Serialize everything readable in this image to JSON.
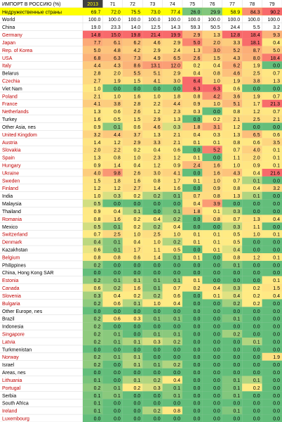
{
  "chart_data": {
    "type": "heatmap",
    "title": "ИМПОРТ В РОССИЮ (%)",
    "columns": [
      "2013",
      "71",
      "72",
      "73",
      "74",
      "75",
      "76",
      "77",
      "78",
      "79"
    ],
    "color_scale": {
      "low": "#63be7b",
      "mid": "#ffeb84",
      "high": "#f8696b"
    },
    "highlight_colors": {
      "header_2013": "#3f3f3f",
      "unfriendly_row": "#ffff00",
      "red_label": "#c00000",
      "black_label": "#000000"
    },
    "rows": [
      {
        "name": "Недружественные страны",
        "style": "unfriendly",
        "plain": true,
        "values": [
          69.7,
          72.0,
          75.5,
          73.0,
          77.4,
          26.0,
          29.9,
          58.9,
          84.3,
          90.2
        ]
      },
      {
        "name": "World",
        "style": "black",
        "plain": true,
        "values": [
          100.0,
          100.0,
          100.0,
          100.0,
          100.0,
          100.0,
          100.0,
          100.0,
          100.0,
          100.0
        ]
      },
      {
        "name": "China",
        "style": "black",
        "plain": true,
        "values": [
          19.0,
          23.3,
          14.0,
          12.5,
          14.3,
          59.3,
          50.5,
          24.4,
          5.5,
          3.2
        ]
      },
      {
        "name": "Germany",
        "style": "red",
        "values": [
          14.8,
          15.0,
          19.8,
          21.4,
          19.9,
          2.9,
          1.3,
          12.8,
          18.4,
          9.3
        ]
      },
      {
        "name": "Japan",
        "style": "red",
        "values": [
          7.7,
          6.1,
          6.2,
          4.6,
          2.9,
          5.0,
          2.0,
          3.3,
          18.1,
          0.4
        ]
      },
      {
        "name": "Rep. of Korea",
        "style": "red",
        "values": [
          5.0,
          4.8,
          4.2,
          2.9,
          2.4,
          1.3,
          3.0,
          5.2,
          8.7,
          5.0
        ]
      },
      {
        "name": "USA",
        "style": "red",
        "values": [
          6.8,
          6.3,
          7.3,
          4.9,
          6.5,
          2.6,
          1.5,
          4.3,
          8.0,
          18.4
        ]
      },
      {
        "name": "Italy",
        "style": "red",
        "values": [
          4.4,
          4.3,
          8.6,
          13.1,
          12.0,
          0.2,
          0.4,
          6.2,
          1.9,
          0.0
        ]
      },
      {
        "name": "Belarus",
        "style": "black",
        "values": [
          2.8,
          2.0,
          5.5,
          5.1,
          2.9,
          0.4,
          0.8,
          4.6,
          2.5,
          0.7
        ]
      },
      {
        "name": "Czechia",
        "style": "red",
        "values": [
          2.7,
          1.9,
          1.5,
          4.1,
          3.0,
          6.4,
          1.0,
          1.9,
          3.8,
          1.3
        ]
      },
      {
        "name": "Viet Nam",
        "style": "black",
        "values": [
          1.0,
          0.0,
          0.0,
          0.0,
          0.0,
          6.3,
          6.3,
          0.6,
          0.0,
          0.0
        ]
      },
      {
        "name": "Poland",
        "style": "red",
        "values": [
          2.1,
          1.0,
          1.6,
          1.0,
          1.8,
          0.8,
          4.2,
          3.6,
          1.9,
          0.7
        ]
      },
      {
        "name": "France",
        "style": "red",
        "values": [
          4.1,
          3.8,
          2.8,
          2.2,
          4.4,
          0.9,
          1.0,
          5.1,
          1.7,
          21.3
        ]
      },
      {
        "name": "Netherlands",
        "style": "red",
        "values": [
          1.3,
          0.6,
          2.6,
          1.2,
          2.3,
          0.3,
          0.0,
          0.8,
          1.2,
          0.7
        ]
      },
      {
        "name": "Turkey",
        "style": "black",
        "values": [
          1.6,
          0.5,
          1.5,
          2.9,
          1.3,
          0.0,
          0.2,
          2.1,
          2.5,
          2.1
        ]
      },
      {
        "name": "Other Asia, nes",
        "style": "black",
        "values": [
          0.9,
          0.1,
          0.6,
          4.6,
          0.3,
          1.8,
          3.1,
          1.2,
          0.0,
          0.0
        ]
      },
      {
        "name": "United Kingdom",
        "style": "red",
        "values": [
          3.2,
          4.4,
          3.7,
          1.3,
          2.1,
          0.4,
          0.3,
          1.3,
          6.5,
          0.6
        ]
      },
      {
        "name": "Austria",
        "style": "red",
        "values": [
          1.4,
          1.2,
          2.9,
          3.3,
          2.1,
          0.1,
          0.1,
          0.8,
          0.6,
          3.5
        ]
      },
      {
        "name": "Slovakia",
        "style": "red",
        "values": [
          2.0,
          2.2,
          0.2,
          0.4,
          0.6,
          0.0,
          5.2,
          0.7,
          4.0,
          0.1
        ]
      },
      {
        "name": "Spain",
        "style": "red",
        "values": [
          1.3,
          0.8,
          1.0,
          2.3,
          1.2,
          0.1,
          0.0,
          1.1,
          2.0,
          0.1
        ]
      },
      {
        "name": "Hungary",
        "style": "red",
        "values": [
          0.9,
          1.4,
          0.4,
          1.2,
          0.9,
          2.4,
          1.6,
          1.0,
          0.9,
          0.1
        ]
      },
      {
        "name": "Ukraine",
        "style": "red",
        "values": [
          4.0,
          9.8,
          2.6,
          3.0,
          4.1,
          0.0,
          1.6,
          4.3,
          0.4,
          21.6
        ]
      },
      {
        "name": "Sweden",
        "style": "red",
        "values": [
          1.5,
          1.8,
          1.6,
          0.8,
          1.7,
          0.1,
          1.0,
          0.7,
          0.1,
          0.0
        ]
      },
      {
        "name": "Finland",
        "style": "red",
        "values": [
          1.2,
          1.2,
          2.7,
          1.4,
          1.6,
          0.0,
          0.9,
          0.8,
          0.4,
          3.2
        ]
      },
      {
        "name": "India",
        "style": "black",
        "values": [
          1.0,
          0.3,
          0.2,
          0.2,
          0.1,
          0.7,
          0.8,
          1.3,
          0.1,
          0.0
        ]
      },
      {
        "name": "Malaysia",
        "style": "black",
        "values": [
          0.5,
          0.0,
          0.0,
          0.0,
          0.0,
          0.4,
          3.9,
          0.0,
          0.0,
          0.0
        ]
      },
      {
        "name": "Thailand",
        "style": "black",
        "values": [
          0.9,
          0.4,
          0.1,
          0.0,
          0.1,
          1.8,
          0.1,
          0.3,
          0.0,
          0.0
        ]
      },
      {
        "name": "Romania",
        "style": "red",
        "values": [
          0.8,
          1.6,
          0.2,
          0.4,
          0.2,
          0.0,
          0.8,
          0.7,
          1.3,
          0.4
        ]
      },
      {
        "name": "Mexico",
        "style": "black",
        "values": [
          0.5,
          0.1,
          0.2,
          0.2,
          0.4,
          0.0,
          0.0,
          0.3,
          1.1,
          0.0
        ]
      },
      {
        "name": "Switzerland",
        "style": "red",
        "values": [
          0.7,
          2.5,
          1.0,
          2.5,
          1.0,
          0.1,
          0.1,
          0.5,
          1.0,
          0.1
        ]
      },
      {
        "name": "Denmark",
        "style": "red",
        "values": [
          0.4,
          0.1,
          0.4,
          1.0,
          0.2,
          0.1,
          0.1,
          0.5,
          0.0,
          0.0
        ]
      },
      {
        "name": "Kazakhstan",
        "style": "black",
        "values": [
          0.6,
          0.1,
          1.7,
          1.1,
          0.5,
          0.0,
          0.1,
          0.4,
          0.0,
          0.0
        ]
      },
      {
        "name": "Belgium",
        "style": "red",
        "values": [
          0.8,
          0.8,
          0.6,
          1.4,
          0.1,
          0.1,
          0.0,
          0.8,
          1.2,
          0.1
        ]
      },
      {
        "name": "Philippines",
        "style": "black",
        "values": [
          0.2,
          0.0,
          0.0,
          0.0,
          0.0,
          0.0,
          0.0,
          0.1,
          0.0,
          0.0
        ]
      },
      {
        "name": "China, Hong Kong SAR",
        "style": "black",
        "values": [
          0.0,
          0.0,
          0.0,
          0.0,
          0.0,
          0.0,
          0.0,
          0.0,
          0.0,
          0.0
        ]
      },
      {
        "name": "Estonia",
        "style": "red",
        "values": [
          0.2,
          0.1,
          0.1,
          0.1,
          0.1,
          0.1,
          0.0,
          0.0,
          0.0,
          0.1
        ]
      },
      {
        "name": "Canada",
        "style": "red",
        "values": [
          0.6,
          0.2,
          1.6,
          0.1,
          0.7,
          0.2,
          0.4,
          0.3,
          0.2,
          1.5
        ]
      },
      {
        "name": "Slovenia",
        "style": "red",
        "values": [
          0.3,
          0.4,
          0.2,
          0.2,
          0.6,
          0.0,
          0.1,
          0.4,
          0.2,
          0.4
        ]
      },
      {
        "name": "Bulgaria",
        "style": "red",
        "values": [
          0.2,
          0.6,
          0.1,
          1.0,
          0.4,
          0.0,
          0.0,
          0.2,
          0.2,
          0.0
        ]
      },
      {
        "name": "Other Europe, nes",
        "style": "black",
        "values": [
          0.0,
          0.0,
          0.0,
          0.0,
          0.0,
          0.0,
          0.0,
          0.0,
          0.0,
          0.0
        ]
      },
      {
        "name": "Brazil",
        "style": "black",
        "values": [
          0.2,
          0.6,
          0.3,
          0.1,
          0.1,
          0.0,
          0.0,
          0.1,
          0.0,
          0.0
        ]
      },
      {
        "name": "Indonesia",
        "style": "black",
        "values": [
          0.2,
          0.0,
          0.0,
          0.0,
          0.0,
          0.0,
          0.0,
          0.0,
          0.0,
          0.0
        ]
      },
      {
        "name": "Singapore",
        "style": "red",
        "values": [
          0.2,
          0.1,
          0.0,
          0.1,
          0.1,
          0.0,
          0.0,
          0.2,
          0.0,
          0.0
        ]
      },
      {
        "name": "Latvia",
        "style": "red",
        "values": [
          0.2,
          0.1,
          0.1,
          0.3,
          0.2,
          0.0,
          0.0,
          0.0,
          0.1,
          0.0
        ]
      },
      {
        "name": "Turkmenistan",
        "style": "black",
        "values": [
          0.0,
          0.0,
          0.0,
          0.0,
          0.0,
          0.0,
          0.0,
          0.0,
          0.0,
          0.0
        ]
      },
      {
        "name": "Norway",
        "style": "red",
        "values": [
          0.2,
          0.1,
          0.1,
          0.0,
          0.0,
          0.0,
          0.0,
          0.0,
          0.0,
          1.9
        ]
      },
      {
        "name": "Israel",
        "style": "black",
        "values": [
          0.2,
          0.0,
          0.1,
          0.1,
          0.2,
          0.0,
          0.0,
          0.0,
          0.0,
          0.0
        ]
      },
      {
        "name": "Areas, nes",
        "style": "black",
        "values": [
          0.0,
          0.0,
          0.0,
          0.0,
          0.0,
          0.0,
          0.0,
          0.0,
          0.0,
          0.0
        ]
      },
      {
        "name": "Lithuania",
        "style": "red",
        "values": [
          0.1,
          0.0,
          0.1,
          0.2,
          0.4,
          0.0,
          0.0,
          0.1,
          0.1,
          0.0
        ]
      },
      {
        "name": "Portugal",
        "style": "red",
        "values": [
          0.2,
          0.1,
          0.2,
          0.3,
          0.1,
          0.0,
          0.0,
          0.1,
          0.2,
          0.0
        ]
      },
      {
        "name": "Serbia",
        "style": "black",
        "values": [
          0.1,
          0.1,
          0.0,
          0.0,
          0.1,
          0.0,
          0.0,
          0.1,
          0.0,
          0.0
        ]
      },
      {
        "name": "South Africa",
        "style": "black",
        "values": [
          0.1,
          0.0,
          0.0,
          0.0,
          0.0,
          0.0,
          0.0,
          0.0,
          0.0,
          0.0
        ]
      },
      {
        "name": "Ireland",
        "style": "red",
        "values": [
          0.1,
          0.0,
          0.0,
          0.2,
          0.8,
          0.0,
          0.0,
          0.1,
          0.0,
          0.0
        ]
      },
      {
        "name": "Luxembourg",
        "style": "red",
        "values": [
          0.0,
          0.0,
          0.0,
          0.0,
          0.0,
          0.0,
          0.0,
          0.0,
          0.0,
          0.0
        ]
      }
    ]
  }
}
